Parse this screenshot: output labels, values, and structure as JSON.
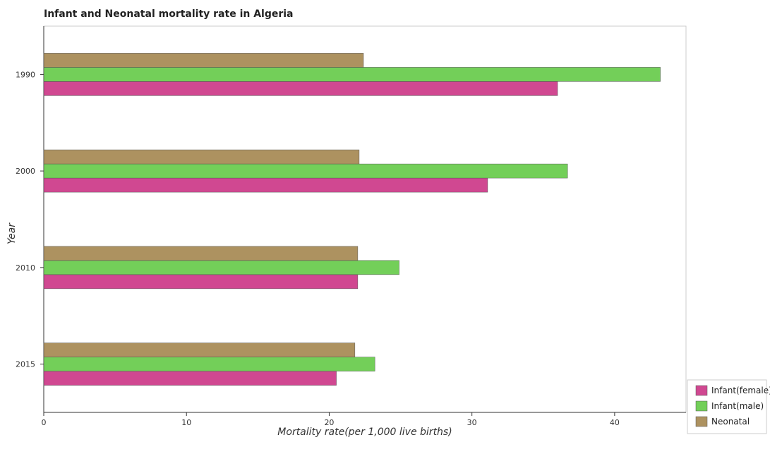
{
  "chart_data": {
    "type": "bar",
    "orientation": "horizontal",
    "title": "Infant and Neonatal mortality rate in Algeria",
    "xlabel": "Mortality rate(per 1,000 live births)",
    "ylabel": "Year",
    "categories": [
      "1990",
      "2000",
      "2010",
      "2015"
    ],
    "xlim": [
      0,
      45
    ],
    "xticks": [
      "0",
      "10",
      "20",
      "30",
      "40"
    ],
    "grid": false,
    "legend_position": "bottom-right",
    "series": [
      {
        "name": "Infant(female)",
        "color": "#c8287e",
        "values": [
          36.0,
          31.1,
          22.0,
          20.5
        ]
      },
      {
        "name": "Infant(male)",
        "color": "#5ac73c",
        "values": [
          43.2,
          36.7,
          24.9,
          23.2
        ]
      },
      {
        "name": "Neonatal",
        "color": "#9f7f44",
        "values": [
          22.4,
          22.1,
          22.0,
          21.8
        ]
      }
    ]
  }
}
